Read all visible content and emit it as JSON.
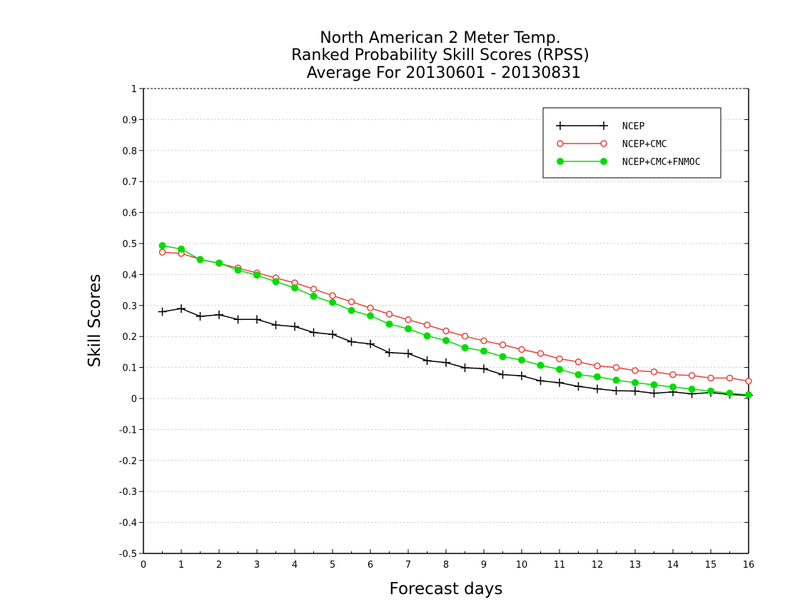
{
  "chart_data": {
    "type": "line",
    "title": [
      "North American 2 Meter Temp.",
      "Ranked Probability Skill Scores (RPSS)",
      "Average For 20130601 - 20130831"
    ],
    "xlabel": "Forecast days",
    "ylabel": "Skill Scores",
    "xlim": [
      0,
      16
    ],
    "ylim": [
      -0.5,
      1
    ],
    "xticks": [
      0,
      1,
      2,
      3,
      4,
      5,
      6,
      7,
      8,
      9,
      10,
      11,
      12,
      13,
      14,
      15,
      16
    ],
    "yticks": [
      -0.5,
      -0.4,
      -0.3,
      -0.2,
      -0.1,
      0,
      0.1,
      0.2,
      0.3,
      0.4,
      0.5,
      0.6,
      0.7,
      0.8,
      0.9,
      1
    ],
    "ytick_labels": [
      "-0.5",
      "-0.4",
      "-0.3",
      "-0.2",
      "-0.1",
      "0",
      "0.1",
      "0.2",
      "0.3",
      "0.4",
      "0.5",
      "0.6",
      "0.7",
      "0.8",
      "0.9",
      "1"
    ],
    "grid": "horizontal-dotted",
    "legend_position": "top-right",
    "x": [
      0.5,
      1,
      1.5,
      2,
      2.5,
      3,
      3.5,
      4,
      4.5,
      5,
      5.5,
      6,
      6.5,
      7,
      7.5,
      8,
      8.5,
      9,
      9.5,
      10,
      10.5,
      11,
      11.5,
      12,
      12.5,
      13,
      13.5,
      14,
      14.5,
      15,
      15.5,
      16
    ],
    "series": [
      {
        "name": "NCEP",
        "color": "#000000",
        "marker": "plus",
        "values": [
          0.28,
          0.29,
          0.265,
          0.27,
          0.255,
          0.255,
          0.237,
          0.232,
          0.213,
          0.207,
          0.183,
          0.176,
          0.148,
          0.145,
          0.122,
          0.116,
          0.099,
          0.096,
          0.077,
          0.073,
          0.057,
          0.051,
          0.039,
          0.031,
          0.025,
          0.024,
          0.017,
          0.021,
          0.015,
          0.019,
          0.013,
          0.01
        ]
      },
      {
        "name": "NCEP+CMC",
        "color": "#e8413a",
        "marker": "open-circle",
        "values": [
          0.472,
          0.468,
          0.449,
          0.436,
          0.421,
          0.405,
          0.389,
          0.373,
          0.353,
          0.332,
          0.312,
          0.292,
          0.272,
          0.254,
          0.237,
          0.218,
          0.201,
          0.186,
          0.173,
          0.158,
          0.145,
          0.128,
          0.118,
          0.105,
          0.1,
          0.09,
          0.086,
          0.077,
          0.074,
          0.066,
          0.066,
          0.056
        ]
      },
      {
        "name": "NCEP+CMC+FNMOC",
        "color": "#00dd00",
        "marker": "filled-circle",
        "values": [
          0.493,
          0.482,
          0.448,
          0.437,
          0.414,
          0.398,
          0.377,
          0.357,
          0.33,
          0.31,
          0.284,
          0.267,
          0.24,
          0.225,
          0.202,
          0.187,
          0.164,
          0.153,
          0.135,
          0.124,
          0.107,
          0.094,
          0.077,
          0.07,
          0.059,
          0.051,
          0.044,
          0.037,
          0.03,
          0.024,
          0.017,
          0.012
        ]
      }
    ]
  }
}
